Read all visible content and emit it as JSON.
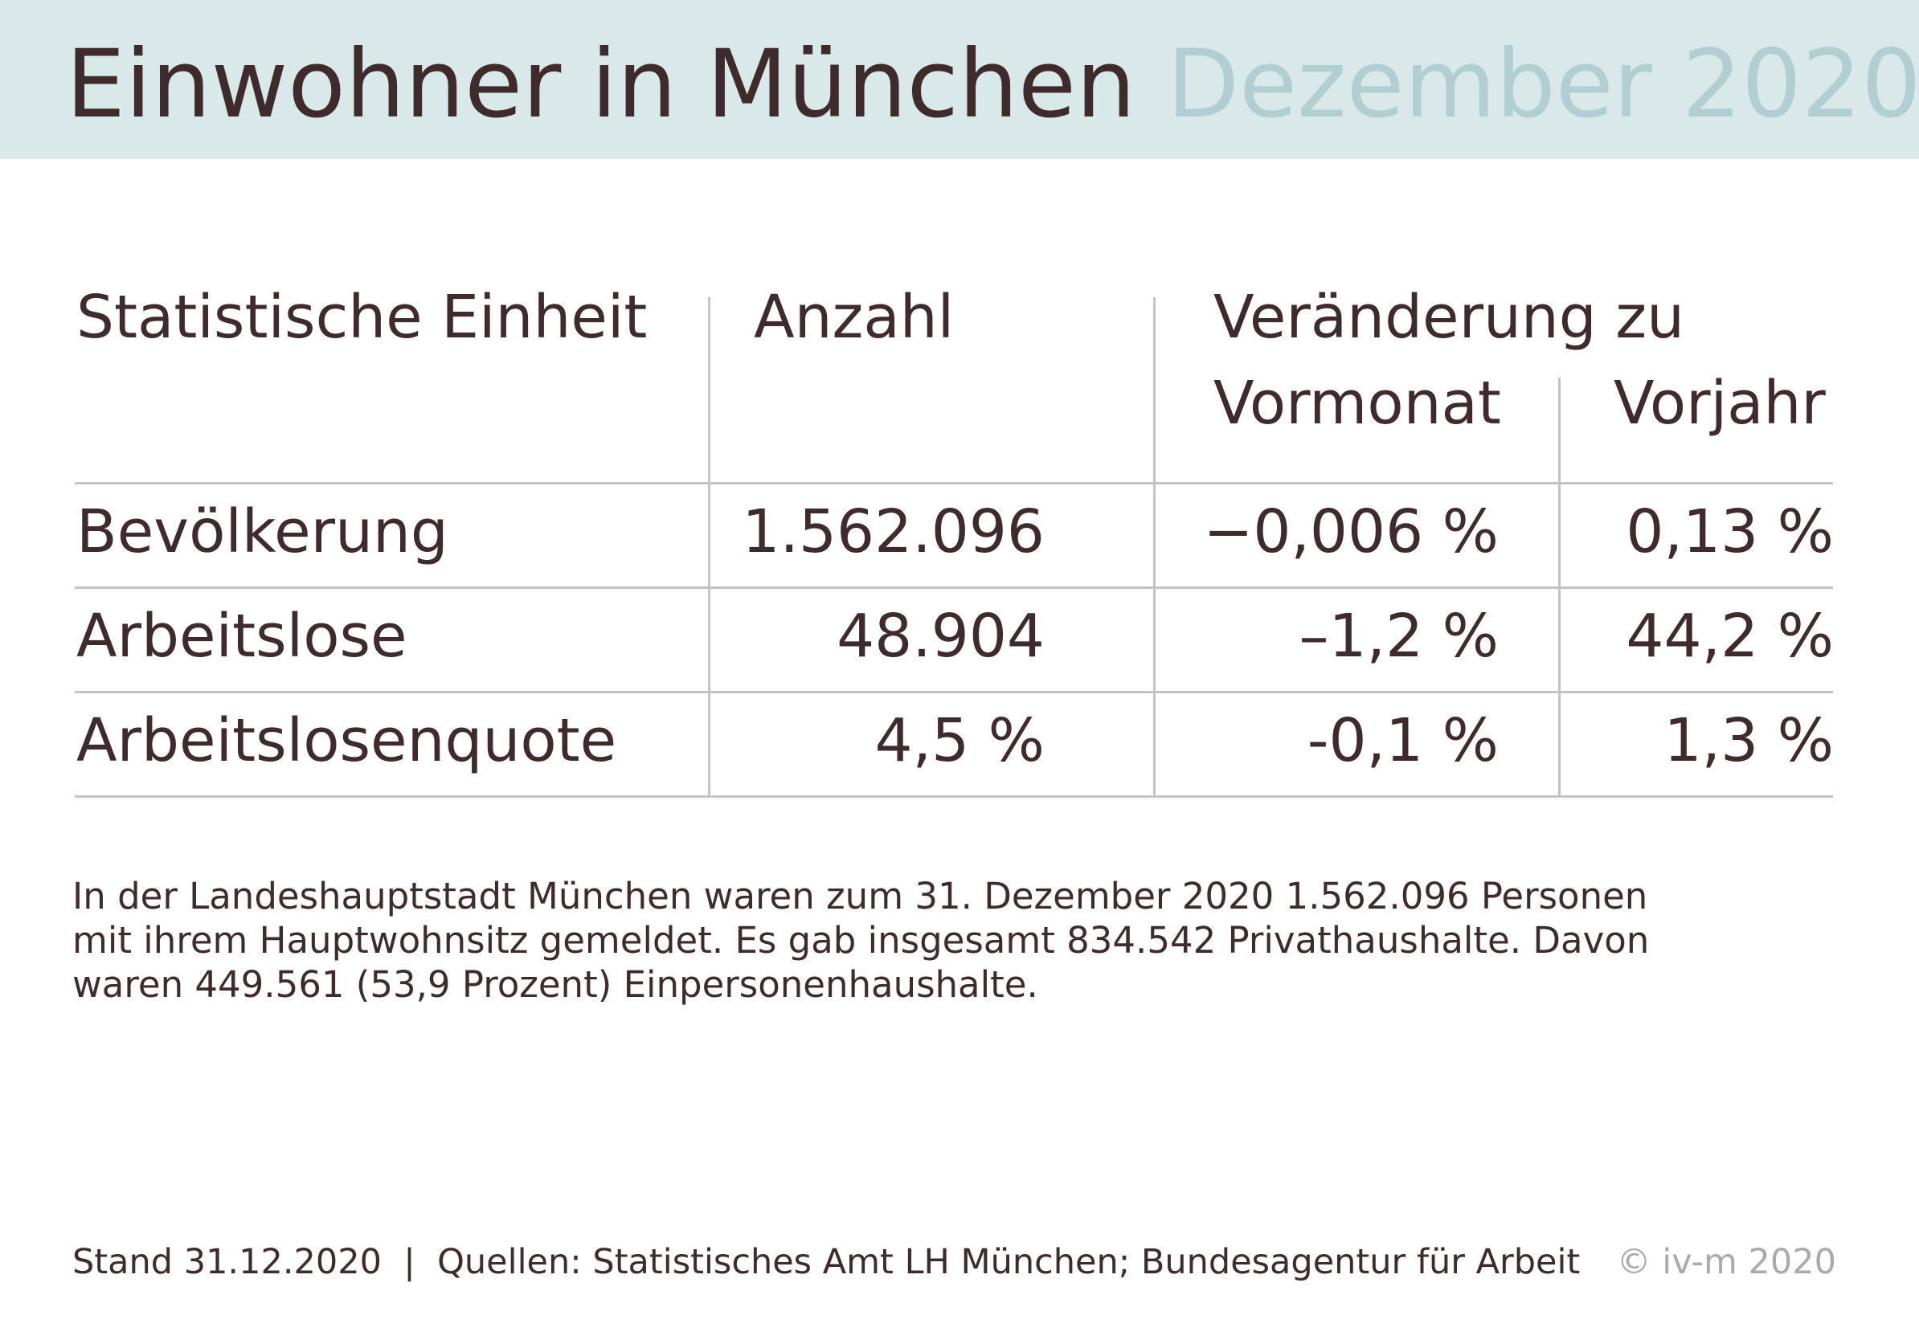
{
  "header": {
    "title": "Einwohner in München",
    "subtitle": "Dezember 2020"
  },
  "table": {
    "headers": {
      "unit": "Statistische Einheit",
      "count": "Anzahl",
      "change": "Veränderung zu",
      "prev_month": "Vormonat",
      "prev_year": "Vorjahr"
    },
    "rows": [
      {
        "label": "Bevölkerung",
        "count": "1.562.096",
        "prev_month": "−0,006 %",
        "prev_year": "0,13 %"
      },
      {
        "label": "Arbeitslose",
        "count": "48.904",
        "prev_month": "–1,2 %",
        "prev_year": "44,2 %"
      },
      {
        "label": "Arbeitslosenquote",
        "count": "4,5 %",
        "prev_month": "-0,1 %",
        "prev_year": "1,3 %"
      }
    ]
  },
  "description": {
    "lines": [
      "In der Landeshauptstadt München waren zum 31. Dezember 2020 1.562.096 Personen",
      "mit ihrem Hauptwohnsitz gemeldet. Es gab insgesamt 834.542 Privathaushalte. Davon",
      "waren 449.561 (53,9 Prozent) Einpersonenhaushalte."
    ]
  },
  "footer": {
    "source": "Stand 31.12.2020  |  Quellen: Statistisches Amt LH München; Bundesagentur für Arbeit",
    "copyright": "© iv-m 2020"
  },
  "colors": {
    "header_bg": "#d9e8e9",
    "title": "#3f2b2b",
    "subtitle": "#b1cfd2",
    "rule": "#c4c4c4",
    "copyright": "#aaaaaa"
  }
}
